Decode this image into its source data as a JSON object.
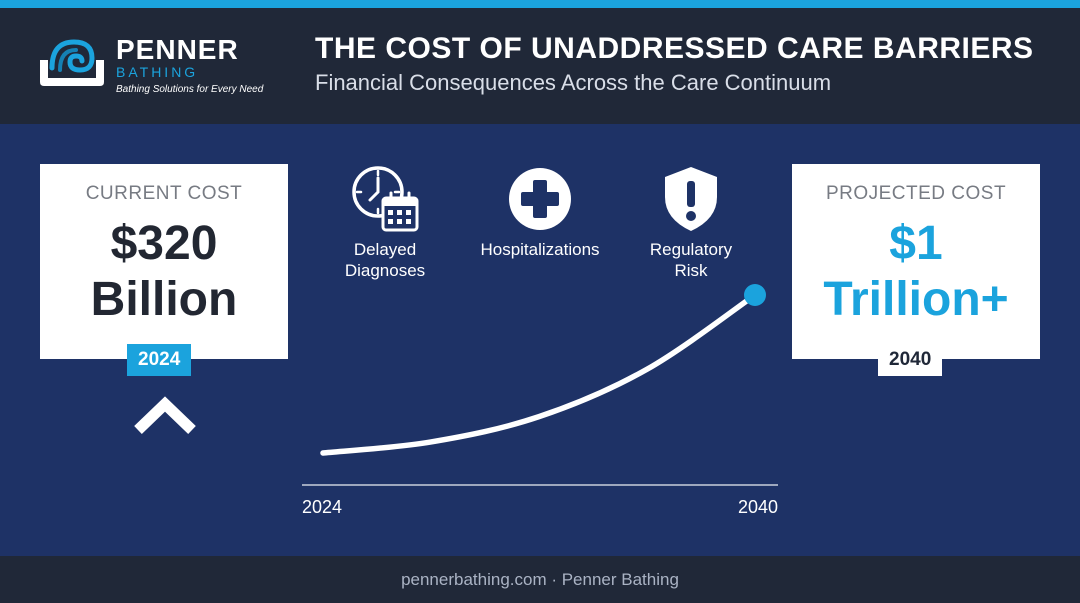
{
  "brand": {
    "name": "PENNER",
    "sub": "BATHING",
    "tagline": "Bathing Solutions for Every Need"
  },
  "header": {
    "title": "THE COST OF UNADDRESSED CARE BARRIERS",
    "subtitle": "Financial Consequences Across the Care Continuum"
  },
  "current": {
    "label": "CURRENT COST",
    "value_line1": "$320",
    "value_line2": "Billion",
    "year": "2024"
  },
  "projected": {
    "label": "PROJECTED COST",
    "value_line1": "$1",
    "value_line2": "Trillion+",
    "year": "2040"
  },
  "factors": [
    {
      "label_line1": "Delayed",
      "label_line2": "Diagnoses",
      "icon": "clock-calendar-icon"
    },
    {
      "label_line1": "Hospitalizations",
      "label_line2": "",
      "icon": "medical-cross-icon"
    },
    {
      "label_line1": "Regulatory",
      "label_line2": "Risk",
      "icon": "shield-alert-icon"
    }
  ],
  "chart_data": {
    "type": "line",
    "title": "",
    "xlabel": "",
    "ylabel": "",
    "x_tick_labels": [
      "2024",
      "2040"
    ],
    "xlim": [
      2024,
      2040
    ],
    "ylim": [
      0,
      1000
    ],
    "series": [
      {
        "x": [
          2024,
          2028,
          2032,
          2036,
          2040
        ],
        "y": [
          0,
          70,
          230,
          530,
          1000
        ]
      }
    ],
    "grid": false,
    "legend": "none"
  },
  "colors": {
    "accent": "#1ba3dd",
    "background": "#1e3266",
    "header": "#202838"
  },
  "footer": {
    "text": "pennerbathing.com · Penner Bathing"
  }
}
